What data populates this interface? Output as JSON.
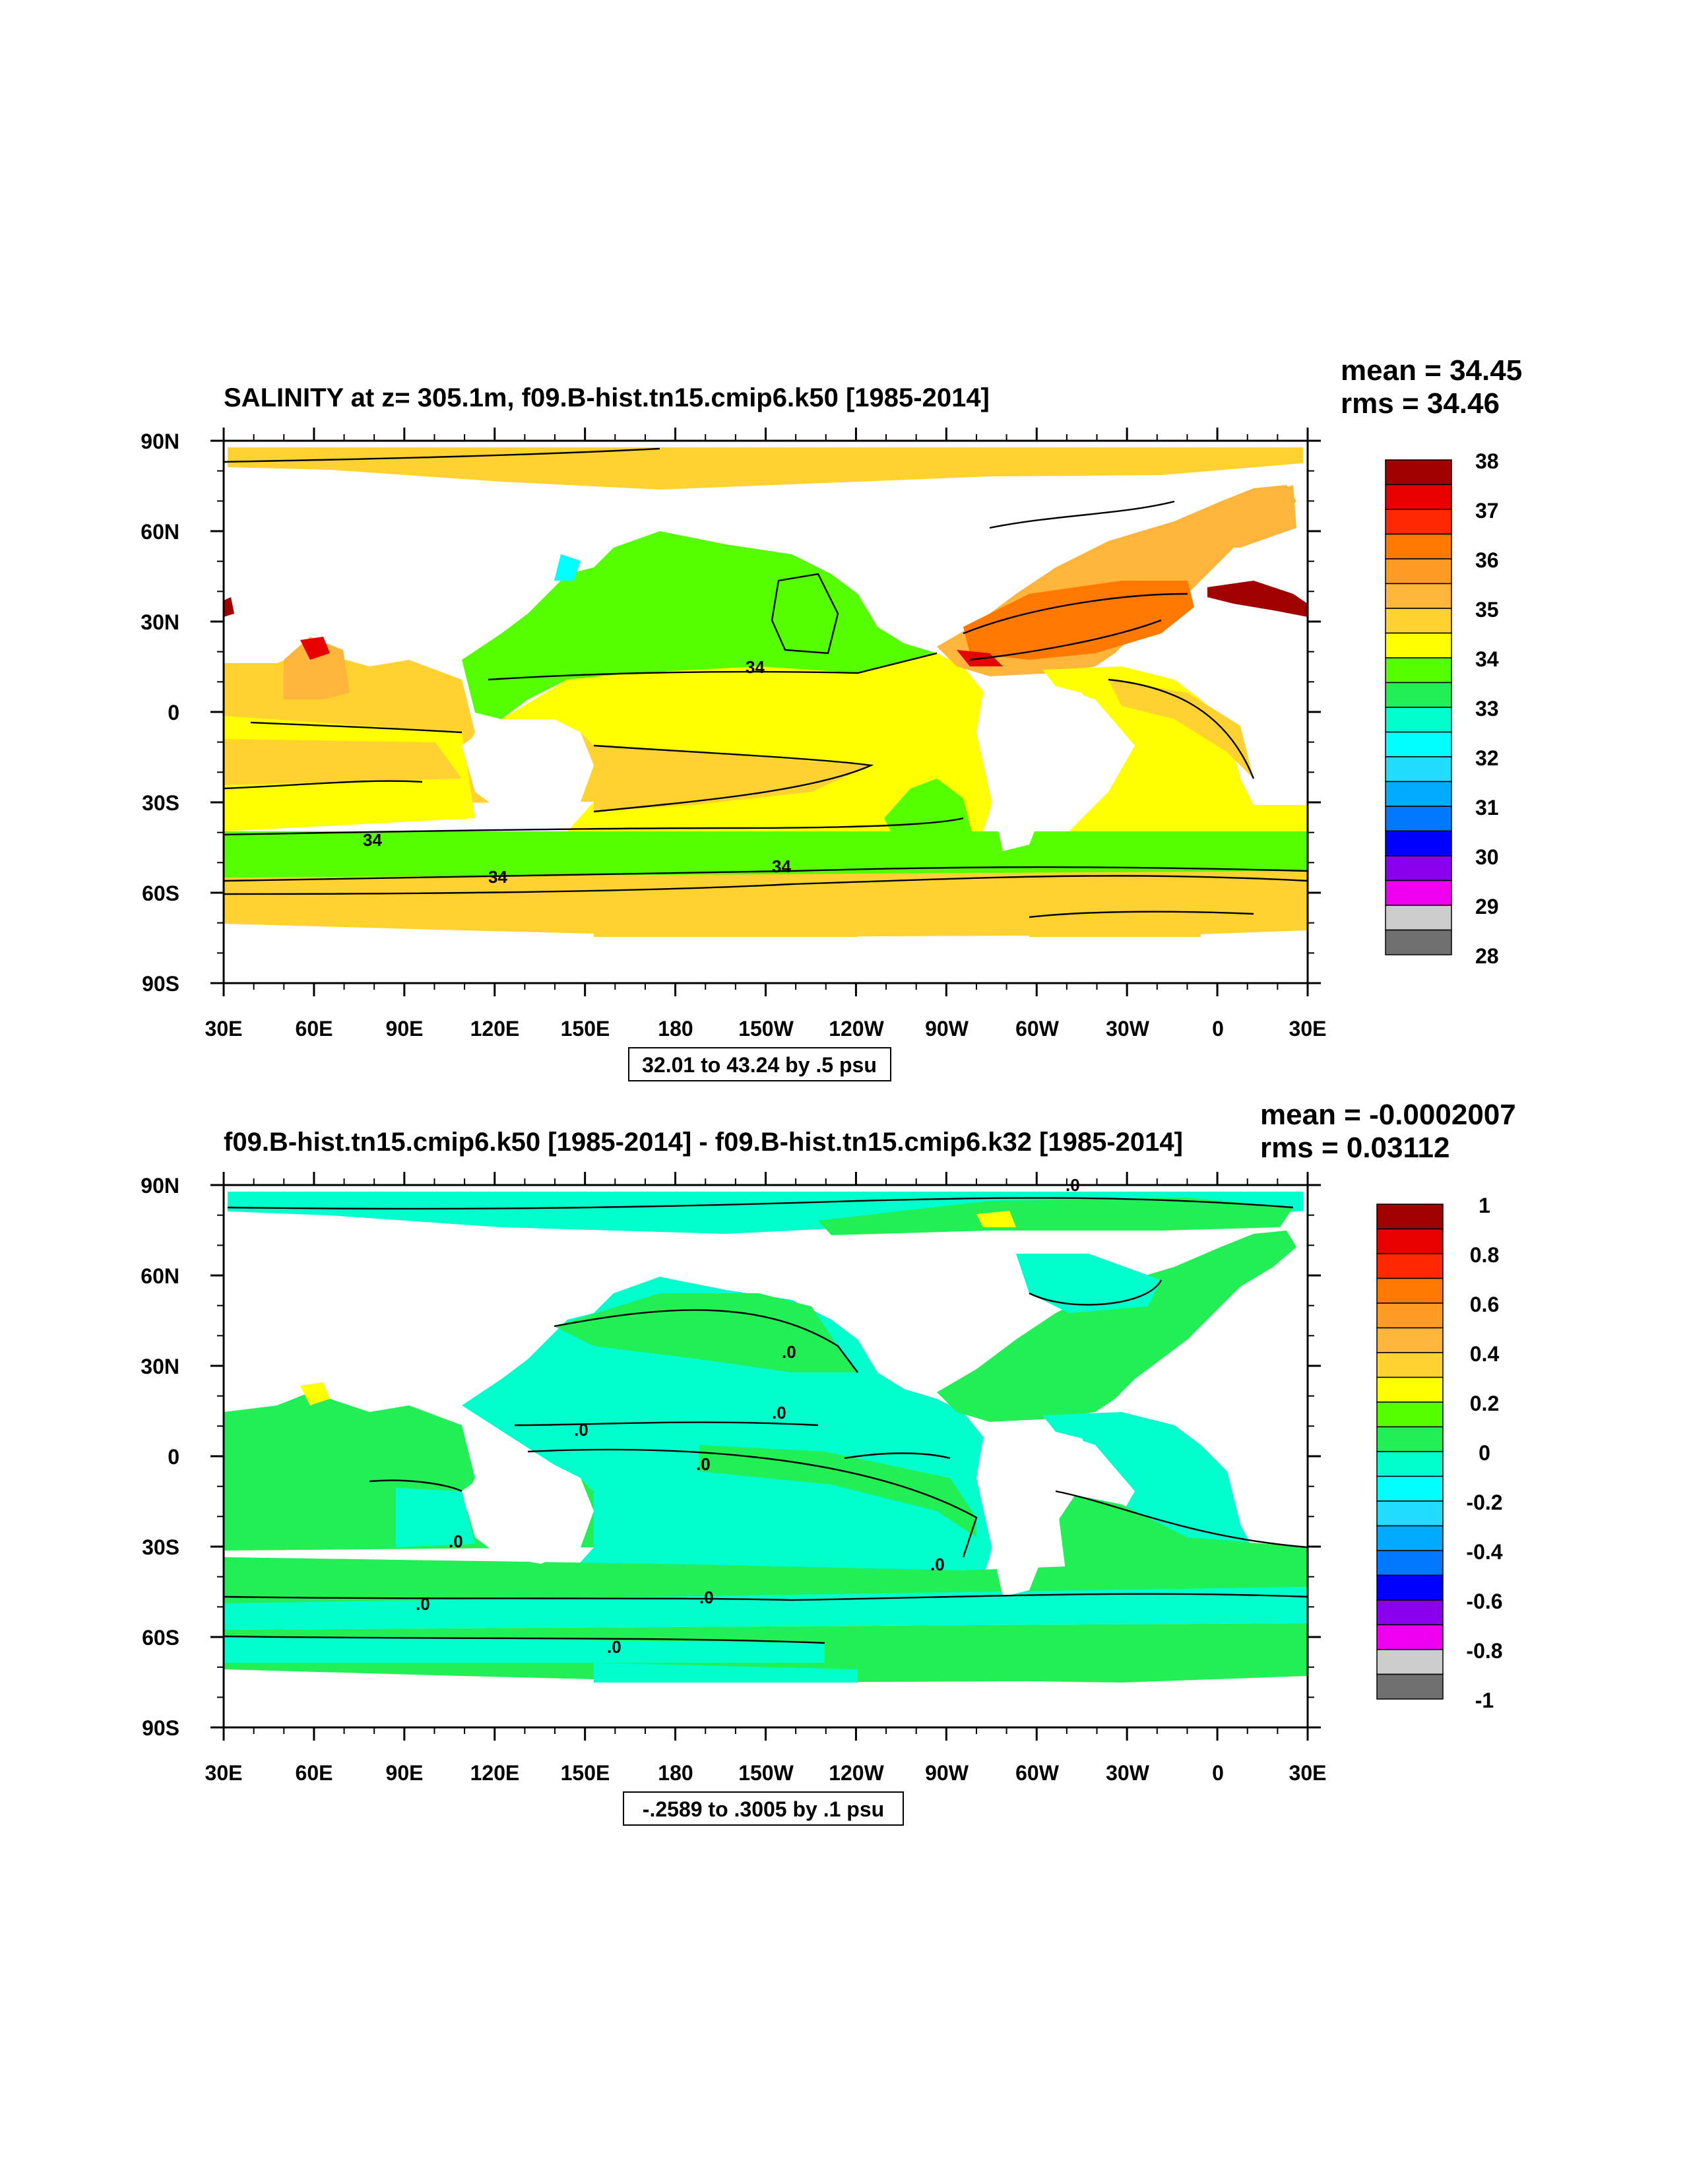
{
  "panels": [
    {
      "title": "SALINITY at z= 305.1m, f09.B-hist.tn15.cmip6.k50 [1985-2014]",
      "mean_text": "mean = 34.45",
      "rms_text": "rms = 34.46",
      "info_text": "32.01 to 43.24 by .5 psu",
      "lat_ticks": [
        "90N",
        "60N",
        "30N",
        "0",
        "30S",
        "60S",
        "90S"
      ],
      "lon_ticks": [
        "30E",
        "60E",
        "90E",
        "120E",
        "150E",
        "180",
        "150W",
        "120W",
        "90W",
        "60W",
        "30W",
        "0",
        "30E"
      ],
      "colorbar_labels": [
        "38",
        "37",
        "36",
        "35",
        "34",
        "33",
        "32",
        "31",
        "30",
        "29",
        "28"
      ],
      "contour_labels": [
        "34",
        "34",
        "34",
        "34"
      ]
    },
    {
      "title": "f09.B-hist.tn15.cmip6.k50 [1985-2014] - f09.B-hist.tn15.cmip6.k32 [1985-2014]",
      "mean_text": "mean = -0.0002007",
      "rms_text": "rms = 0.03112",
      "info_text": "-.2589 to .3005 by .1 psu",
      "lat_ticks": [
        "90N",
        "60N",
        "30N",
        "0",
        "30S",
        "60S",
        "90S"
      ],
      "lon_ticks": [
        "30E",
        "60E",
        "90E",
        "120E",
        "150E",
        "180",
        "150W",
        "120W",
        "90W",
        "60W",
        "30W",
        "0",
        "30E"
      ],
      "colorbar_labels": [
        "1",
        "0.8",
        "0.6",
        "0.4",
        "0.2",
        "0",
        "-0.2",
        "-0.4",
        "-0.6",
        "-0.8",
        "-1"
      ],
      "contour_labels": [
        ".0",
        ".0",
        ".0",
        ".0",
        ".0",
        ".0",
        ".0",
        ".0",
        ".0",
        ".0"
      ]
    }
  ],
  "colorbar_colors": [
    "#a00000",
    "#e60000",
    "#ff2800",
    "#ff7800",
    "#ff9b23",
    "#ffb43c",
    "#ffd232",
    "#ffff00",
    "#55ff00",
    "#22ee55",
    "#00ffcc",
    "#00ffff",
    "#22ddff",
    "#00aaff",
    "#0077ff",
    "#0000ff",
    "#8800ee",
    "#ee00ee",
    "#cccccc",
    "#707070"
  ]
}
